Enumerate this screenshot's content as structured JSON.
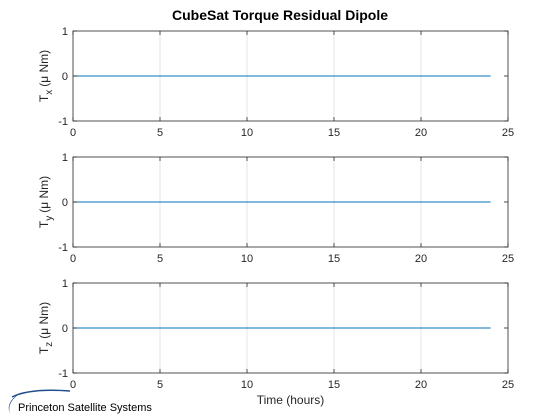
{
  "figure": {
    "title": "CubeSat Torque Residual Dipole",
    "branding": "Princeton Satellite Systems",
    "colors": {
      "line": "#0072BD",
      "grid": "#e6e6e6",
      "axes": "#262626",
      "logo": "#1f4e8c"
    }
  },
  "chart_data": [
    {
      "type": "line",
      "title": "CubeSat Torque Residual Dipole",
      "xlabel": "",
      "ylabel_main": "T",
      "ylabel_sub": "x",
      "ylabel_unit": "(μ Nm)",
      "xlim": [
        0,
        25
      ],
      "ylim": [
        -1,
        1
      ],
      "xticks": [
        0,
        5,
        10,
        15,
        20,
        25
      ],
      "yticks": [
        -1,
        0,
        1
      ],
      "grid": "x-only",
      "series": [
        {
          "x": [
            0,
            24
          ],
          "y": [
            0,
            0
          ]
        }
      ]
    },
    {
      "type": "line",
      "title": "",
      "xlabel": "",
      "ylabel_main": "T",
      "ylabel_sub": "y",
      "ylabel_unit": "(μ Nm)",
      "xlim": [
        0,
        25
      ],
      "ylim": [
        -1,
        1
      ],
      "xticks": [
        0,
        5,
        10,
        15,
        20,
        25
      ],
      "yticks": [
        -1,
        0,
        1
      ],
      "grid": "x-only",
      "series": [
        {
          "x": [
            0,
            24
          ],
          "y": [
            0,
            0
          ]
        }
      ]
    },
    {
      "type": "line",
      "title": "",
      "xlabel": "Time (hours)",
      "ylabel_main": "T",
      "ylabel_sub": "z",
      "ylabel_unit": "(μ Nm)",
      "xlim": [
        0,
        25
      ],
      "ylim": [
        -1,
        1
      ],
      "xticks": [
        0,
        5,
        10,
        15,
        20,
        25
      ],
      "yticks": [
        -1,
        0,
        1
      ],
      "grid": "x-only",
      "series": [
        {
          "x": [
            0,
            24
          ],
          "y": [
            0,
            0
          ]
        }
      ]
    }
  ]
}
